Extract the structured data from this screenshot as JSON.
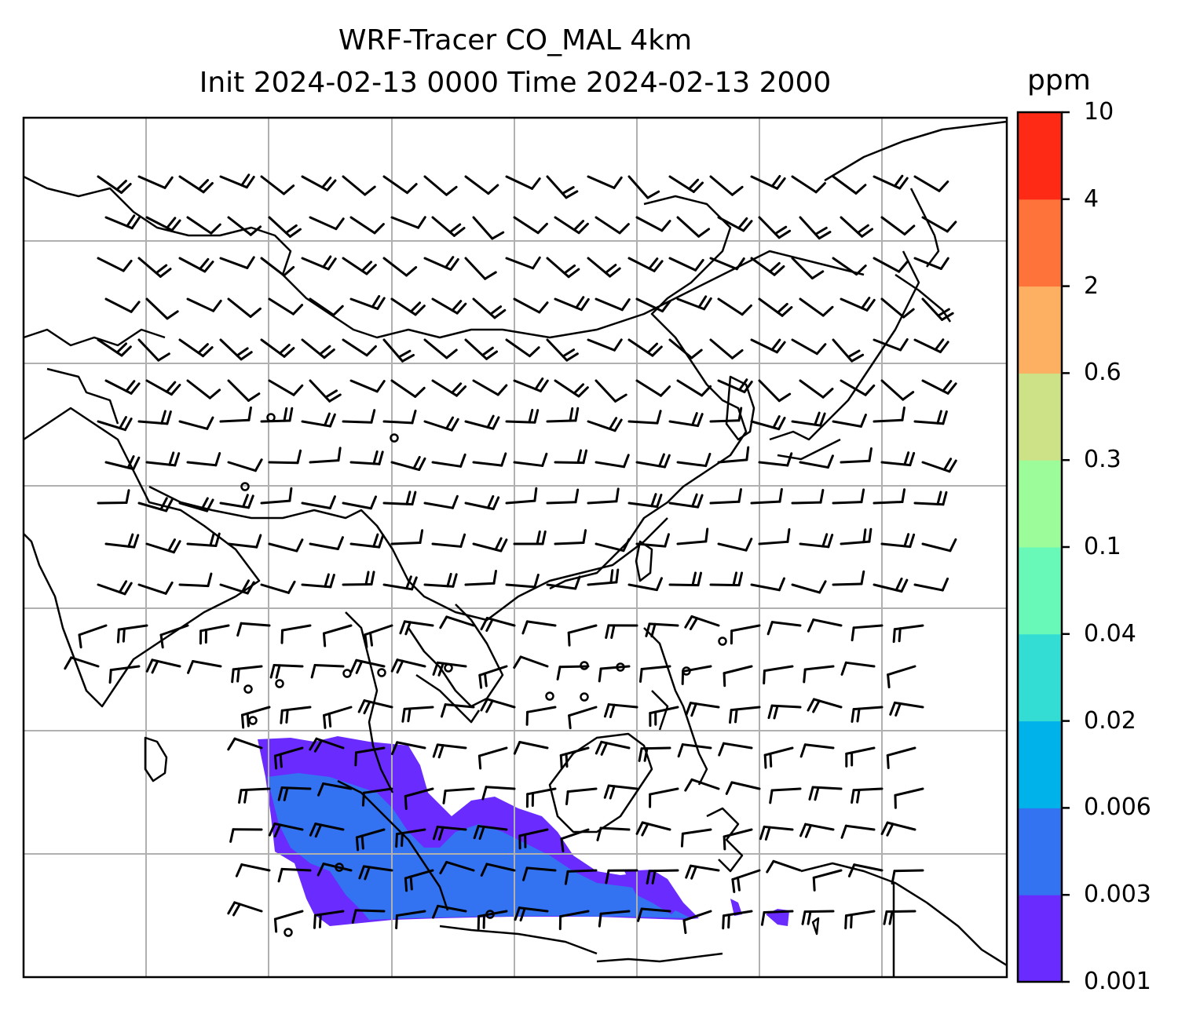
{
  "title": {
    "line1": "WRF-Tracer CO_MAL 4km",
    "line2": "Init 2024-02-13 0000 Time 2024-02-13 2000"
  },
  "colorbar": {
    "unit": "ppm",
    "levels": [
      "0.001",
      "0.003",
      "0.006",
      "0.02",
      "0.04",
      "0.1",
      "0.3",
      "0.6",
      "2",
      "4",
      "10"
    ],
    "colors": [
      "#6a2bff",
      "#3372f1",
      "#00b2ea",
      "#33ddd3",
      "#68f9b9",
      "#9cfc99",
      "#cde186",
      "#fdb061",
      "#fe733a",
      "#ff2a16"
    ]
  },
  "map": {
    "features": [
      "coastline-lines",
      "gridlines",
      "wind-barbs",
      "co-tracer-field"
    ]
  }
}
